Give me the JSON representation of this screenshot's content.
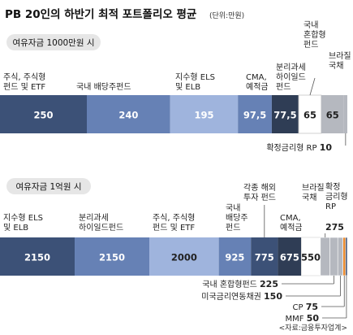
{
  "title": "PB 20인의 하반기 최적 포트폴리오 평균",
  "unit": "(단위:만원)",
  "source": "<자료:금융투자업계>",
  "colors": {
    "navy": "#3c5177",
    "mid": "#6681b5",
    "light": "#9fb4dd",
    "cma": "#2f3d55",
    "white_bar": "#ffffff",
    "gray": "#b5b8bf",
    "orange": "#e98a2e",
    "pill": "#e6e6e6"
  },
  "chart_data": [
    {
      "type": "bar",
      "subtitle": "여유자금 1000만원 시",
      "total": 1000,
      "segments": [
        {
          "name": "주식, 주식형\n펀드 및 ETF",
          "value": 250,
          "label": "250"
        },
        {
          "name": "국내 배당주펀드",
          "value": 240,
          "label": "240"
        },
        {
          "name": "지수형 ELS\n및 ELB",
          "value": 195,
          "label": "195"
        },
        {
          "name": "CMA,\n예적금",
          "value": 97.5,
          "label": "97,5"
        },
        {
          "name": "분리과세\n하이일드\n펀드",
          "value": 77.5,
          "label": "77,5"
        },
        {
          "name": "국내\n혼합형\n펀드",
          "value": 65,
          "label": "65"
        },
        {
          "name": "브라질\n국채",
          "value": 65,
          "label": "65"
        },
        {
          "name": "확정금리형 RP",
          "value": 10,
          "label": "10"
        }
      ]
    },
    {
      "type": "bar",
      "subtitle": "여유자금 1억원 시",
      "total": 10000,
      "segments": [
        {
          "name": "지수형 ELS\n및 ELB",
          "value": 2150,
          "label": "2150"
        },
        {
          "name": "분리과세\n하이일드펀드",
          "value": 2150,
          "label": "2150"
        },
        {
          "name": "주식, 주식형\n펀드 및 ETF",
          "value": 2000,
          "label": "2000"
        },
        {
          "name": "국내\n배당주\n펀드",
          "value": 925,
          "label": "925"
        },
        {
          "name": "각종 해외\n투자 펀드",
          "value": 775,
          "label": "775"
        },
        {
          "name": "CMA,\n예적금",
          "value": 675,
          "label": "675"
        },
        {
          "name": "브라질\n국채",
          "value": 550,
          "label": "550"
        },
        {
          "name": "확정\n금리형\nRP",
          "value": 275,
          "label": "275"
        },
        {
          "name": "국내 혼합형펀드",
          "value": 225,
          "label": "225"
        },
        {
          "name": "미국금리연동채권",
          "value": 150,
          "label": "150"
        },
        {
          "name": "CP",
          "value": 75,
          "label": "75"
        },
        {
          "name": "MMF",
          "value": 50,
          "label": "50"
        }
      ]
    }
  ]
}
